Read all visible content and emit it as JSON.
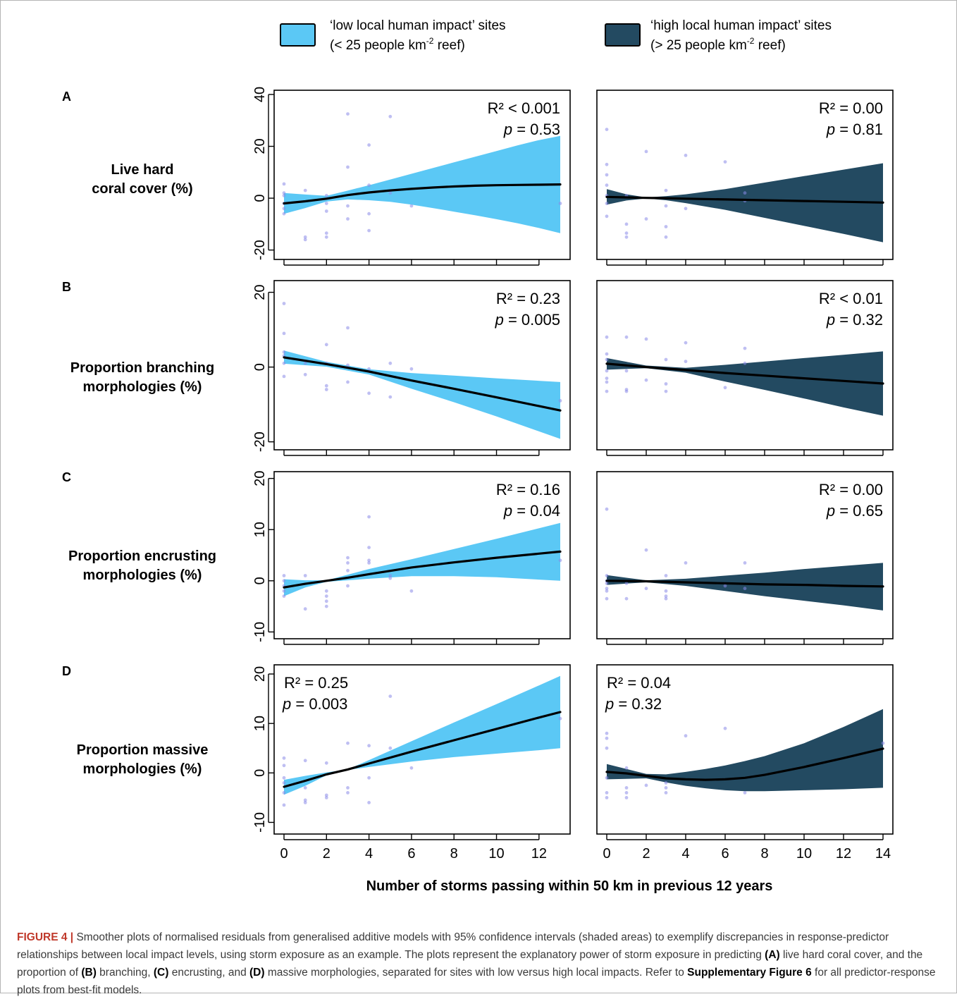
{
  "legend": {
    "low": {
      "line1": "‘low local human impact’ sites",
      "line2_pre": "(< 25 people km",
      "line2_sup": "-2",
      "line2_post": " reef)",
      "color": "#5bc8f5"
    },
    "high": {
      "line1": "‘high local human impact’ sites",
      "line2_pre": "(> 25 people km",
      "line2_sup": "-2",
      "line2_post": " reef)",
      "color": "#234a61"
    }
  },
  "rows": [
    {
      "letter": "A",
      "label_lines": [
        "Live hard",
        "coral cover (%)"
      ]
    },
    {
      "letter": "B",
      "label_lines": [
        "Proportion branching",
        "morphologies (%)"
      ]
    },
    {
      "letter": "C",
      "label_lines": [
        "Proportion encrusting",
        "morphologies (%)"
      ]
    },
    {
      "letter": "D",
      "label_lines": [
        "Proportion massive",
        "morphologies (%)"
      ]
    }
  ],
  "xlabel": "Number of storms passing within 50 km in previous 12 years",
  "caption": {
    "figure_label": "FIGURE 4 |",
    "text1": " Smoother plots of normalised residuals from generalised additive models with 95% confidence intervals (shaded areas) to exemplify discrepancies in response-predictor relationships between local impact levels, using storm exposure as an example. The plots represent the explanatory power of storm exposure in predicting ",
    "a": "(A)",
    "text2": " live hard coral cover, and the proportion of ",
    "b": "(B)",
    "text3": " branching, ",
    "c": "(C)",
    "text4": " encrusting, and ",
    "d": "(D)",
    "text5": " massive morphologies, separated for sites with low versus high local impacts. Refer to ",
    "supp": "Supplementary Figure 6",
    "text6": " for all predictor-response plots from best-fit models."
  },
  "chart_data": [
    {
      "type": "line",
      "panel": "A-low",
      "xlim": [
        0,
        13
      ],
      "ylim": [
        -22,
        40
      ],
      "xticks": [
        0,
        2,
        4,
        6,
        8,
        10,
        12
      ],
      "yticks": [
        -20,
        0,
        20,
        40
      ],
      "show_yticks": true,
      "show_xlabels": false,
      "r2": "R² < 0.001",
      "p_label": "p",
      "p_value": " = 0.53",
      "stats_pos": "top-right",
      "fit_x": [
        0,
        1,
        2,
        3,
        4,
        5,
        6,
        7,
        8,
        9,
        10,
        11,
        12,
        13
      ],
      "fit_y": [
        -2,
        -1.2,
        -0.2,
        1.2,
        2.2,
        3,
        3.6,
        4.1,
        4.5,
        4.8,
        5,
        5.1,
        5.2,
        5.3
      ],
      "ci_upper": [
        2,
        1.4,
        0.9,
        2.9,
        5,
        7.2,
        9.4,
        11.6,
        13.8,
        16,
        18.2,
        20.4,
        22.4,
        24
      ],
      "ci_lower": [
        -6,
        -3.8,
        -1.3,
        -0.5,
        -0.8,
        -1.4,
        -2.5,
        -3.8,
        -5.2,
        -6.6,
        -8.1,
        -9.7,
        -11.5,
        -13.5
      ],
      "points": [
        [
          0,
          5.5
        ],
        [
          0,
          2
        ],
        [
          0,
          1
        ],
        [
          0,
          -2
        ],
        [
          0,
          -4
        ],
        [
          0,
          -6
        ],
        [
          1,
          3
        ],
        [
          1,
          -15
        ],
        [
          1,
          -16
        ],
        [
          2,
          1
        ],
        [
          2,
          -2
        ],
        [
          2,
          -5
        ],
        [
          2,
          -13.5
        ],
        [
          2,
          -15
        ],
        [
          3,
          32.5
        ],
        [
          3,
          12
        ],
        [
          3,
          -3
        ],
        [
          3,
          -8
        ],
        [
          4,
          20.5
        ],
        [
          4,
          5
        ],
        [
          4,
          -6
        ],
        [
          4,
          -12.5
        ],
        [
          5,
          31.5
        ],
        [
          5,
          2
        ],
        [
          6,
          -3
        ],
        [
          13,
          -2
        ]
      ]
    },
    {
      "type": "line",
      "panel": "A-high",
      "xlim": [
        0,
        14
      ],
      "ylim": [
        -22,
        40
      ],
      "xticks": [
        0,
        2,
        4,
        6,
        8,
        10,
        12,
        14
      ],
      "yticks": [
        -20,
        0,
        20,
        40
      ],
      "show_yticks": false,
      "show_xlabels": false,
      "r2": "R² = 0.00",
      "p_label": "p",
      "p_value": " = 0.81",
      "stats_pos": "top-right",
      "fit_x": [
        0,
        1,
        2,
        3,
        4,
        6,
        8,
        10,
        12,
        14
      ],
      "fit_y": [
        0.5,
        0.3,
        0.1,
        0,
        -0.2,
        -0.5,
        -0.8,
        -1.1,
        -1.4,
        -1.7
      ],
      "ci_upper": [
        3.5,
        1.5,
        0.3,
        0.8,
        1.5,
        3.5,
        6,
        8.5,
        11,
        13.5
      ],
      "ci_lower": [
        -2.5,
        -0.9,
        -0.1,
        -0.8,
        -1.9,
        -4.5,
        -7.6,
        -10.7,
        -13.8,
        -17
      ],
      "points": [
        [
          0,
          26.5
        ],
        [
          0,
          13
        ],
        [
          0,
          9
        ],
        [
          0,
          5
        ],
        [
          0,
          1
        ],
        [
          0,
          -2
        ],
        [
          0,
          -7
        ],
        [
          1,
          1
        ],
        [
          1,
          -10
        ],
        [
          1,
          -13.5
        ],
        [
          1,
          -15
        ],
        [
          2,
          18
        ],
        [
          2,
          -8
        ],
        [
          3,
          3
        ],
        [
          3,
          -3
        ],
        [
          3,
          -11
        ],
        [
          3,
          -15
        ],
        [
          4,
          16.5
        ],
        [
          4,
          -4
        ],
        [
          6,
          14
        ],
        [
          7,
          2
        ],
        [
          7,
          -1
        ]
      ]
    },
    {
      "type": "line",
      "panel": "B-low",
      "xlim": [
        0,
        13
      ],
      "ylim": [
        -21,
        22
      ],
      "xticks": [
        0,
        2,
        4,
        6,
        8,
        10,
        12
      ],
      "yticks": [
        -20,
        0,
        20
      ],
      "show_yticks": true,
      "show_xlabels": false,
      "r2": "R² = 0.23",
      "p_label": "p",
      "p_value": " = 0.005",
      "stats_pos": "top-right",
      "fit_x": [
        0,
        2,
        4,
        6,
        8,
        10,
        13
      ],
      "fit_y": [
        2.6,
        0.8,
        -1.2,
        -3.6,
        -5.8,
        -8.1,
        -11.6
      ],
      "ci_upper": [
        4.4,
        1.4,
        -0.6,
        -1.6,
        -2.3,
        -3,
        -4
      ],
      "ci_lower": [
        0.9,
        0.1,
        -2,
        -5.8,
        -9.4,
        -13.2,
        -19.2
      ],
      "points": [
        [
          0,
          17
        ],
        [
          0,
          9
        ],
        [
          0,
          4
        ],
        [
          0,
          3
        ],
        [
          0,
          1
        ],
        [
          0,
          -2.5
        ],
        [
          1,
          1
        ],
        [
          1,
          -2
        ],
        [
          2,
          6
        ],
        [
          2,
          1
        ],
        [
          2,
          -5
        ],
        [
          2,
          -6
        ],
        [
          3,
          10.5
        ],
        [
          3,
          0.5
        ],
        [
          3,
          -4
        ],
        [
          4,
          -0.5
        ],
        [
          4,
          -7
        ],
        [
          5,
          1
        ],
        [
          5,
          -8
        ],
        [
          6,
          -0.5
        ],
        [
          13,
          -9
        ]
      ]
    },
    {
      "type": "line",
      "panel": "B-high",
      "xlim": [
        0,
        14
      ],
      "ylim": [
        -21,
        22
      ],
      "xticks": [
        0,
        2,
        4,
        6,
        8,
        10,
        12,
        14
      ],
      "yticks": [
        -20,
        0,
        20
      ],
      "show_yticks": false,
      "show_xlabels": false,
      "r2": "R² < 0.01",
      "p_label": "p",
      "p_value": " = 0.32",
      "stats_pos": "top-right",
      "fit_x": [
        0,
        2,
        4,
        6,
        8,
        10,
        12,
        14
      ],
      "fit_y": [
        0.9,
        0,
        -0.8,
        -1.6,
        -2.3,
        -3,
        -3.7,
        -4.4
      ],
      "ci_upper": [
        2.4,
        0.4,
        -0.2,
        0.6,
        1.5,
        2.4,
        3.3,
        4.2
      ],
      "ci_lower": [
        -0.7,
        -0.3,
        -1.5,
        -3.9,
        -6.1,
        -8.4,
        -10.8,
        -13
      ],
      "points": [
        [
          0,
          8
        ],
        [
          0,
          3.5
        ],
        [
          0,
          2
        ],
        [
          0,
          -1
        ],
        [
          0,
          -3
        ],
        [
          0,
          -4
        ],
        [
          0,
          -6.5
        ],
        [
          1,
          8
        ],
        [
          1,
          -1
        ],
        [
          1,
          -6
        ],
        [
          1,
          -6.5
        ],
        [
          2,
          7.5
        ],
        [
          2,
          -3.5
        ],
        [
          3,
          2
        ],
        [
          3,
          -4.5
        ],
        [
          3,
          -6.5
        ],
        [
          4,
          6.5
        ],
        [
          4,
          1.5
        ],
        [
          6,
          -5.5
        ],
        [
          7,
          5
        ],
        [
          7,
          1
        ]
      ]
    },
    {
      "type": "line",
      "panel": "C-low",
      "xlim": [
        0,
        13
      ],
      "ylim": [
        -10.5,
        20.5
      ],
      "xticks": [
        0,
        2,
        4,
        6,
        8,
        10,
        12
      ],
      "yticks": [
        -10,
        0,
        10,
        20
      ],
      "show_yticks": true,
      "show_xlabels": false,
      "r2": "R² = 0.16",
      "p_label": "p",
      "p_value": " = 0.04",
      "stats_pos": "top-right",
      "fit_x": [
        0,
        1,
        2,
        3,
        4,
        6,
        8,
        10,
        13
      ],
      "fit_y": [
        -1.3,
        -0.6,
        0,
        0.6,
        1.3,
        2.6,
        3.6,
        4.5,
        5.7
      ],
      "ci_upper": [
        0.3,
        0.1,
        0.1,
        1.2,
        2.3,
        4.2,
        6.2,
        8.2,
        11.3
      ],
      "ci_lower": [
        -3,
        -1.3,
        -0.2,
        0.1,
        0.4,
        0.9,
        0.9,
        0.7,
        0
      ],
      "points": [
        [
          0,
          1
        ],
        [
          0,
          0
        ],
        [
          0,
          -1
        ],
        [
          0,
          -2
        ],
        [
          0,
          -3
        ],
        [
          1,
          1
        ],
        [
          1,
          -5.5
        ],
        [
          2,
          -2
        ],
        [
          2,
          -3
        ],
        [
          2,
          -4
        ],
        [
          2,
          -5
        ],
        [
          3,
          4.5
        ],
        [
          3,
          3.5
        ],
        [
          3,
          2
        ],
        [
          3,
          -1
        ],
        [
          4,
          12.5
        ],
        [
          4,
          6.5
        ],
        [
          4,
          4
        ],
        [
          4,
          3.5
        ],
        [
          5,
          1
        ],
        [
          5,
          0.5
        ],
        [
          6,
          -2
        ],
        [
          13,
          4
        ]
      ]
    },
    {
      "type": "line",
      "panel": "C-high",
      "xlim": [
        0,
        14
      ],
      "ylim": [
        -10.5,
        20.5
      ],
      "xticks": [
        0,
        2,
        4,
        6,
        8,
        10,
        12,
        14
      ],
      "yticks": [
        -10,
        0,
        10,
        20
      ],
      "show_yticks": false,
      "show_xlabels": false,
      "r2": "R² = 0.00",
      "p_label": "p",
      "p_value": " = 0.65",
      "stats_pos": "top-right",
      "fit_x": [
        0,
        2,
        4,
        6,
        8,
        10,
        12,
        14
      ],
      "fit_y": [
        0,
        -0.1,
        -0.3,
        -0.5,
        -0.7,
        -0.8,
        -1,
        -1.1
      ],
      "ci_upper": [
        1.1,
        0.1,
        0.4,
        1,
        1.6,
        2.3,
        2.9,
        3.5
      ],
      "ci_lower": [
        -0.8,
        -0.3,
        -1,
        -2,
        -3,
        -3.9,
        -4.8,
        -5.8
      ],
      "points": [
        [
          0,
          14
        ],
        [
          0,
          1
        ],
        [
          0,
          0
        ],
        [
          0,
          -0.5
        ],
        [
          0,
          -1.5
        ],
        [
          0,
          -2
        ],
        [
          0,
          -3.5
        ],
        [
          1,
          -3.5
        ],
        [
          1,
          -0.5
        ],
        [
          2,
          6
        ],
        [
          2,
          -1.5
        ],
        [
          3,
          1
        ],
        [
          3,
          -2
        ],
        [
          3,
          -3
        ],
        [
          3,
          -3.5
        ],
        [
          4,
          3.5
        ],
        [
          6,
          -1
        ],
        [
          7,
          3.5
        ],
        [
          7,
          -1.5
        ]
      ]
    },
    {
      "type": "line",
      "panel": "D-low",
      "xlim": [
        0,
        13
      ],
      "ylim": [
        -11.5,
        21
      ],
      "xticks": [
        0,
        2,
        4,
        6,
        8,
        10,
        12
      ],
      "yticks": [
        -10,
        0,
        10,
        20
      ],
      "show_yticks": true,
      "show_xlabels": true,
      "r2": "R² = 0.25",
      "p_label": "p",
      "p_value": " = 0.003",
      "stats_pos": "top-left",
      "fit_x": [
        0,
        1,
        2,
        3,
        4,
        6,
        8,
        10,
        12,
        13
      ],
      "fit_y": [
        -2.8,
        -1.6,
        -0.3,
        0.7,
        1.9,
        4.3,
        6.6,
        8.9,
        11.2,
        12.3
      ],
      "ci_upper": [
        -1.4,
        -0.6,
        0.1,
        0.7,
        2.6,
        6.4,
        10.2,
        13.9,
        17.7,
        19.6
      ],
      "ci_lower": [
        -4.4,
        -2.6,
        -0.5,
        0.6,
        1.2,
        2.3,
        3.2,
        3.9,
        4.6,
        5
      ],
      "points": [
        [
          0,
          3
        ],
        [
          0,
          1.5
        ],
        [
          0,
          -1
        ],
        [
          0,
          -2
        ],
        [
          0,
          -4
        ],
        [
          0,
          -6.5
        ],
        [
          1,
          2.5
        ],
        [
          1,
          -3
        ],
        [
          1,
          -5.5
        ],
        [
          1,
          -6
        ],
        [
          2,
          2
        ],
        [
          2,
          -4.5
        ],
        [
          2,
          -5
        ],
        [
          3,
          6
        ],
        [
          3,
          -3
        ],
        [
          3,
          -4
        ],
        [
          4,
          5.5
        ],
        [
          4,
          -1
        ],
        [
          4,
          -6
        ],
        [
          5,
          15.5
        ],
        [
          5,
          5
        ],
        [
          6,
          1
        ],
        [
          13,
          11
        ]
      ]
    },
    {
      "type": "line",
      "panel": "D-high",
      "xlim": [
        0,
        14
      ],
      "ylim": [
        -11.5,
        21
      ],
      "xticks": [
        0,
        2,
        4,
        6,
        8,
        10,
        12,
        14
      ],
      "yticks": [
        -10,
        0,
        10,
        20
      ],
      "show_yticks": false,
      "show_xlabels": true,
      "r2": "R² = 0.04",
      "p_label": "p",
      "p_value": " = 0.32",
      "stats_pos": "top-left",
      "fit_x": [
        0,
        1,
        2,
        3,
        4,
        5,
        6,
        7,
        8,
        10,
        12,
        14
      ],
      "fit_y": [
        0.2,
        -0.1,
        -0.6,
        -1.1,
        -1.3,
        -1.4,
        -1.3,
        -1,
        -0.4,
        1.2,
        3,
        4.9
      ],
      "ci_upper": [
        1.8,
        0.8,
        -0.2,
        -0.3,
        0.2,
        0.8,
        1.5,
        2.4,
        3.4,
        6,
        9.3,
        12.9
      ],
      "ci_lower": [
        -1.3,
        -1.2,
        -1.1,
        -1.9,
        -2.6,
        -3.1,
        -3.5,
        -3.7,
        -3.7,
        -3.5,
        -3.3,
        -3
      ],
      "points": [
        [
          0,
          8
        ],
        [
          0,
          7
        ],
        [
          0,
          5
        ],
        [
          0,
          -1
        ],
        [
          0,
          -4
        ],
        [
          0,
          -5
        ],
        [
          1,
          1
        ],
        [
          1,
          -3
        ],
        [
          1,
          -4
        ],
        [
          1,
          -5
        ],
        [
          2,
          -2.5
        ],
        [
          3,
          -2
        ],
        [
          3,
          -3
        ],
        [
          3,
          -4
        ],
        [
          4,
          7.5
        ],
        [
          6,
          9
        ],
        [
          7,
          -4
        ],
        [
          14,
          6
        ]
      ]
    }
  ]
}
